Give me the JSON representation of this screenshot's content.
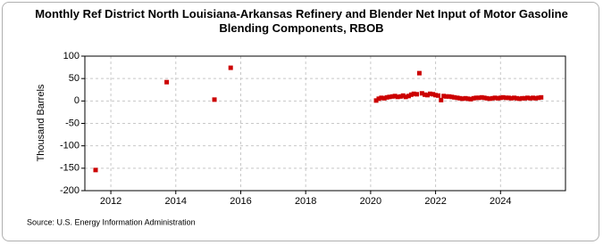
{
  "chart_data": {
    "type": "scatter",
    "title": "Monthly Ref District North Louisiana-Arkansas Refinery and Blender Net Input of Motor Gasoline Blending Components, RBOB",
    "y_label": "Thousand Barrels",
    "source": "Source: U.S. Energy Information Administration",
    "color": "#cc0000",
    "grid": true,
    "xlim": [
      2011.2,
      2026.0
    ],
    "xticks": [
      2012,
      2014,
      2016,
      2018,
      2020,
      2022,
      2024
    ],
    "ylim": [
      -200,
      100
    ],
    "yticks": [
      -200,
      -150,
      -100,
      -50,
      0,
      50,
      100
    ],
    "x": [
      2011.53,
      2013.72,
      2015.19,
      2015.69,
      2020.17,
      2020.25,
      2020.33,
      2020.42,
      2020.5,
      2020.58,
      2020.67,
      2020.75,
      2020.83,
      2020.92,
      2021.0,
      2021.08,
      2021.17,
      2021.25,
      2021.33,
      2021.42,
      2021.5,
      2021.58,
      2021.67,
      2021.75,
      2021.83,
      2021.92,
      2022.0,
      2022.08,
      2022.17,
      2022.25,
      2022.33,
      2022.42,
      2022.5,
      2022.58,
      2022.67,
      2022.75,
      2022.83,
      2022.92,
      2023.0,
      2023.08,
      2023.17,
      2023.25,
      2023.33,
      2023.42,
      2023.5,
      2023.58,
      2023.67,
      2023.75,
      2023.83,
      2023.92,
      2024.0,
      2024.08,
      2024.17,
      2024.25,
      2024.33,
      2024.42,
      2024.5,
      2024.58,
      2024.67,
      2024.75,
      2024.83,
      2024.92,
      2025.0,
      2025.08,
      2025.17,
      2025.25
    ],
    "values": [
      -154,
      42,
      3,
      74,
      1,
      5,
      7,
      6,
      8,
      9,
      10,
      11,
      9,
      10,
      12,
      9,
      11,
      14,
      16,
      15,
      62,
      17,
      14,
      13,
      16,
      15,
      13,
      12,
      2,
      11,
      10,
      10,
      9,
      8,
      7,
      6,
      5,
      6,
      5,
      4,
      6,
      7,
      7,
      8,
      7,
      6,
      5,
      6,
      7,
      6,
      7,
      8,
      7,
      7,
      6,
      7,
      6,
      5,
      6,
      6,
      7,
      6,
      7,
      6,
      7,
      8
    ]
  }
}
